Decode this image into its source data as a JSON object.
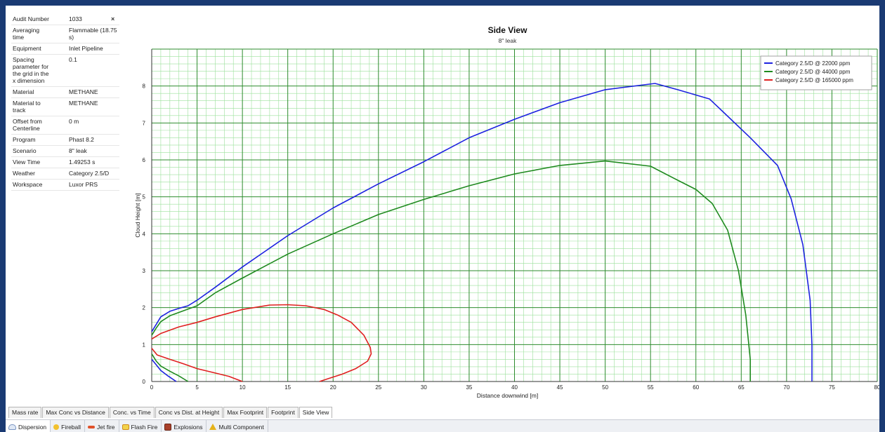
{
  "properties": [
    {
      "key": "Audit Number",
      "value": "1033"
    },
    {
      "key": "Averaging time",
      "value": "Flammable (18.75 s)"
    },
    {
      "key": "Equipment",
      "value": "Inlet Pipeline"
    },
    {
      "key": "Spacing parameter for the grid in the x dimension",
      "value": "0.1"
    },
    {
      "key": "Material",
      "value": "METHANE"
    },
    {
      "key": "Material to track",
      "value": "METHANE"
    },
    {
      "key": "Offset from Centerline",
      "value": "0 m"
    },
    {
      "key": "Program",
      "value": "Phast 8.2"
    },
    {
      "key": "Scenario",
      "value": "8\" leak"
    },
    {
      "key": "View Time",
      "value": "1.49253 s"
    },
    {
      "key": "Weather",
      "value": "Category 2.5/D"
    },
    {
      "key": "Workspace",
      "value": "Luxor PRS"
    }
  ],
  "close_glyph": "×",
  "report_tabs": [
    "Mass rate",
    "Max Conc vs Distance",
    "Conc. vs Time",
    "Conc vs Dist. at Height",
    "Max Footprint",
    "Footprint",
    "Side View"
  ],
  "active_report_tab": "Side View",
  "model_tabs": [
    {
      "label": "Dispersion",
      "icon": "dispersion-icon"
    },
    {
      "label": "Fireball",
      "icon": "fireball-icon"
    },
    {
      "label": "Jet fire",
      "icon": "jet-fire-icon"
    },
    {
      "label": "Flash Fire",
      "icon": "flash-fire-icon"
    },
    {
      "label": "Explosions",
      "icon": "explosions-icon"
    },
    {
      "label": "Multi Component",
      "icon": "multi-component-icon"
    }
  ],
  "active_model_tab": "Dispersion",
  "colors": {
    "major_grid": "#2e8b2e",
    "minor_grid": "#9be09b",
    "red": "#e02020",
    "green": "#1f8a1f",
    "blue": "#1d22e0"
  },
  "chart_data": {
    "type": "line",
    "title": "Side View",
    "subtitle": "8\" leak",
    "xlabel": "Distance downwind [m]",
    "ylabel": "Cloud Height [m]",
    "xlim": [
      0,
      80
    ],
    "ylim": [
      0,
      9
    ],
    "x_ticks": [
      0,
      5,
      10,
      15,
      20,
      25,
      30,
      35,
      40,
      45,
      50,
      55,
      60,
      65,
      70,
      75,
      80
    ],
    "y_ticks": [
      0,
      1,
      2,
      3,
      4,
      5,
      6,
      7,
      8
    ],
    "grid": true,
    "legend_position": "top-right",
    "series": [
      {
        "name": "Category 2.5/D @ 22000 ppm",
        "color": "#1d22e0",
        "points": [
          [
            0,
            1.35
          ],
          [
            0.5,
            1.55
          ],
          [
            1,
            1.75
          ],
          [
            2,
            1.9
          ],
          [
            3,
            1.98
          ],
          [
            4,
            2.05
          ],
          [
            5,
            2.2
          ],
          [
            7,
            2.55
          ],
          [
            10,
            3.1
          ],
          [
            15,
            3.95
          ],
          [
            20,
            4.7
          ],
          [
            25,
            5.35
          ],
          [
            30,
            5.95
          ],
          [
            35,
            6.6
          ],
          [
            40,
            7.1
          ],
          [
            45,
            7.55
          ],
          [
            50,
            7.9
          ],
          [
            55.5,
            8.07
          ],
          [
            58,
            7.9
          ],
          [
            61.5,
            7.65
          ],
          [
            63,
            7.3
          ],
          [
            66,
            6.6
          ],
          [
            69,
            5.85
          ],
          [
            70.5,
            4.95
          ],
          [
            71.8,
            3.7
          ],
          [
            72.6,
            2.2
          ],
          [
            72.8,
            1
          ],
          [
            72.8,
            0
          ]
        ]
      },
      {
        "name": "Category 2.5/D @ 44000 ppm",
        "color": "#1f8a1f",
        "points": [
          [
            0,
            1.25
          ],
          [
            0.5,
            1.45
          ],
          [
            1,
            1.62
          ],
          [
            2,
            1.78
          ],
          [
            3,
            1.87
          ],
          [
            4,
            1.96
          ],
          [
            5,
            2.05
          ],
          [
            7,
            2.4
          ],
          [
            10,
            2.8
          ],
          [
            15,
            3.45
          ],
          [
            20,
            4.0
          ],
          [
            25,
            4.52
          ],
          [
            30,
            4.93
          ],
          [
            35,
            5.3
          ],
          [
            40,
            5.62
          ],
          [
            45,
            5.85
          ],
          [
            50,
            5.97
          ],
          [
            55,
            5.83
          ],
          [
            58,
            5.45
          ],
          [
            60,
            5.2
          ],
          [
            61.8,
            4.82
          ],
          [
            63.5,
            4.1
          ],
          [
            64.7,
            3.0
          ],
          [
            65.5,
            1.8
          ],
          [
            66,
            0.6
          ],
          [
            66,
            0
          ]
        ]
      },
      {
        "name": "Category 2.5/D @ 165000 ppm",
        "color": "#e02020",
        "points": [
          [
            0,
            1.15
          ],
          [
            1,
            1.3
          ],
          [
            3,
            1.48
          ],
          [
            5,
            1.6
          ],
          [
            7,
            1.75
          ],
          [
            10,
            1.95
          ],
          [
            13,
            2.07
          ],
          [
            15,
            2.08
          ],
          [
            17,
            2.05
          ],
          [
            19,
            1.95
          ],
          [
            20.5,
            1.8
          ],
          [
            22,
            1.6
          ],
          [
            23.4,
            1.25
          ],
          [
            24.1,
            0.92
          ],
          [
            24.2,
            0.75
          ],
          [
            23.8,
            0.55
          ],
          [
            22.5,
            0.35
          ],
          [
            21,
            0.2
          ],
          [
            19.5,
            0.08
          ],
          [
            18.5,
            0
          ]
        ]
      },
      {
        "name": "",
        "color": "#e02020",
        "points": [
          [
            0,
            0.9
          ],
          [
            0.6,
            0.72
          ],
          [
            2,
            0.6
          ],
          [
            3.5,
            0.48
          ],
          [
            5,
            0.35
          ],
          [
            7,
            0.23
          ],
          [
            8.5,
            0.14
          ],
          [
            10,
            0
          ]
        ]
      },
      {
        "name": "",
        "color": "#1d22e0",
        "points": [
          [
            0,
            0.6
          ],
          [
            0.5,
            0.45
          ],
          [
            1,
            0.3
          ],
          [
            1.8,
            0.15
          ],
          [
            2.7,
            0
          ]
        ]
      },
      {
        "name": "",
        "color": "#1f8a1f",
        "points": [
          [
            0,
            0.75
          ],
          [
            0.5,
            0.55
          ],
          [
            1,
            0.42
          ],
          [
            2,
            0.28
          ],
          [
            3,
            0.15
          ],
          [
            4,
            0
          ]
        ]
      }
    ]
  }
}
